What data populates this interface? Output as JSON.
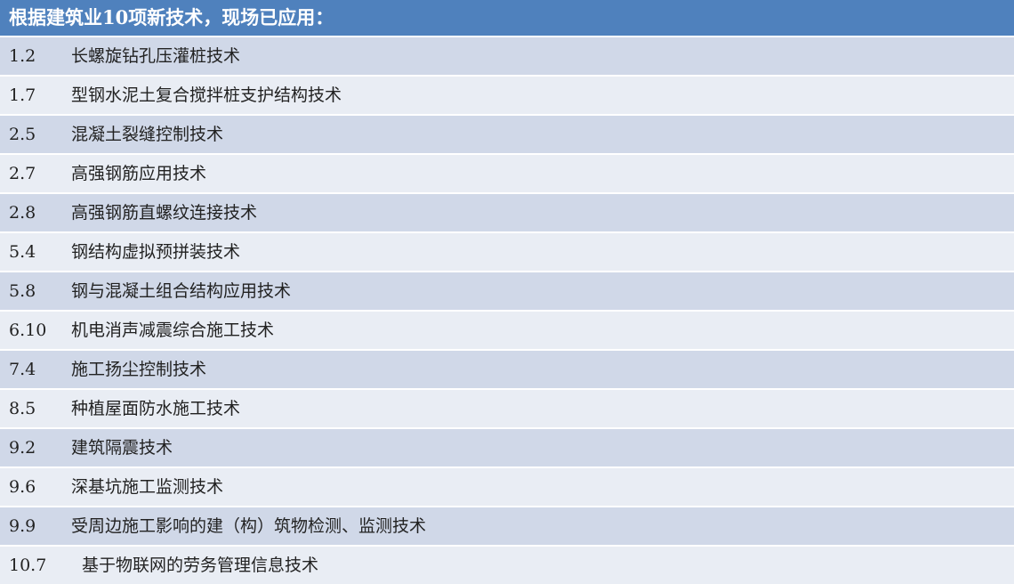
{
  "header": {
    "title": "根据建筑业10项新技术，现场已应用："
  },
  "colors": {
    "header": "#4f81bd",
    "row_odd": "#d0d8e8",
    "row_even": "#e9edf4"
  },
  "rows": [
    {
      "code": "1.2",
      "name": "长螺旋钻孔压灌桩技术"
    },
    {
      "code": "1.7",
      "name": "型钢水泥土复合搅拌桩支护结构技术"
    },
    {
      "code": "2.5",
      "name": "混凝土裂缝控制技术"
    },
    {
      "code": "2.7",
      "name": "高强钢筋应用技术"
    },
    {
      "code": "2.8",
      "name": "高强钢筋直螺纹连接技术"
    },
    {
      "code": "5.4",
      "name": "钢结构虚拟预拼装技术"
    },
    {
      "code": "5.8",
      "name": "钢与混凝土组合结构应用技术"
    },
    {
      "code": "6.10",
      "name": "机电消声减震综合施工技术"
    },
    {
      "code": "7.4",
      "name": "施工扬尘控制技术"
    },
    {
      "code": "8.5",
      "name": "种植屋面防水施工技术"
    },
    {
      "code": "9.2",
      "name": "建筑隔震技术"
    },
    {
      "code": "9.6",
      "name": "深基坑施工监测技术"
    },
    {
      "code": "9.9",
      "name": "受周边施工影响的建（构）筑物检测、监测技术"
    },
    {
      "code": "10.7",
      "name": "基于物联网的劳务管理信息技术"
    }
  ]
}
